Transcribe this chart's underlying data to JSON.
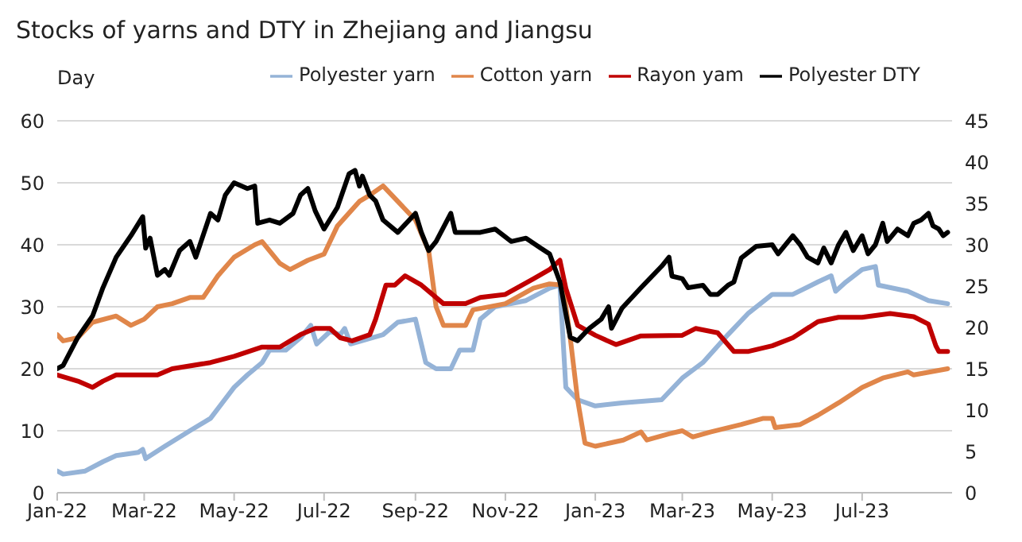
{
  "chart_data": {
    "type": "line",
    "title": "Stocks of yarns and DTY in Zhejiang and Jiangsu",
    "ylabel": "Day",
    "xlim": [
      "2022-01-01",
      "2023-08-31"
    ],
    "xticks": [
      {
        "value": "2022-01-01",
        "label": "Jan-22"
      },
      {
        "value": "2022-03-01",
        "label": "Mar-22"
      },
      {
        "value": "2022-05-01",
        "label": "May-22"
      },
      {
        "value": "2022-07-01",
        "label": "Jul-22"
      },
      {
        "value": "2022-09-01",
        "label": "Sep-22"
      },
      {
        "value": "2022-11-01",
        "label": "Nov-22"
      },
      {
        "value": "2023-01-01",
        "label": "Jan-23"
      },
      {
        "value": "2023-03-01",
        "label": "Mar-23"
      },
      {
        "value": "2023-05-01",
        "label": "May-23"
      },
      {
        "value": "2023-07-01",
        "label": "Jul-23"
      }
    ],
    "ylim": [
      0,
      60
    ],
    "yticks": [
      0,
      10,
      20,
      30,
      40,
      50,
      60
    ],
    "y2lim": [
      0,
      45
    ],
    "y2ticks": [
      0,
      5,
      10,
      15,
      20,
      25,
      30,
      35,
      40,
      45
    ],
    "grid": "y",
    "legend": "top",
    "marker": "none",
    "line_style": "solid",
    "series": [
      {
        "name": "Polyester yarn",
        "color": "#95b3d7",
        "x": [
          "2022-01-01",
          "2022-01-05",
          "2022-01-20",
          "2022-02-01",
          "2022-02-10",
          "2022-02-25",
          "2022-02-28",
          "2022-03-02",
          "2022-03-15",
          "2022-04-01",
          "2022-04-15",
          "2022-05-01",
          "2022-05-10",
          "2022-05-20",
          "2022-05-25",
          "2022-06-05",
          "2022-06-15",
          "2022-06-22",
          "2022-06-26",
          "2022-07-05",
          "2022-07-12",
          "2022-07-15",
          "2022-07-19",
          "2022-08-10",
          "2022-08-20",
          "2022-09-01",
          "2022-09-08",
          "2022-09-15",
          "2022-09-25",
          "2022-10-01",
          "2022-10-10",
          "2022-10-15",
          "2022-10-25",
          "2022-11-15",
          "2022-12-01",
          "2022-12-08",
          "2022-12-12",
          "2022-12-20",
          "2023-01-01",
          "2023-01-19",
          "2023-02-15",
          "2023-03-01",
          "2023-03-15",
          "2023-04-01",
          "2023-04-15",
          "2023-05-01",
          "2023-05-15",
          "2023-06-01",
          "2023-06-10",
          "2023-06-13",
          "2023-06-20",
          "2023-07-01",
          "2023-07-10",
          "2023-07-12",
          "2023-08-01",
          "2023-08-15",
          "2023-08-28"
        ],
        "values": [
          3.5,
          3,
          3.5,
          5,
          6,
          6.5,
          7,
          5.5,
          7.5,
          10,
          12,
          17,
          19,
          21,
          23,
          23,
          25,
          27,
          24,
          26,
          25.5,
          26.5,
          24,
          25.5,
          27.5,
          28,
          21,
          20,
          20,
          23,
          23,
          28,
          30,
          31,
          33,
          33.5,
          17,
          15,
          14,
          14.5,
          15,
          18.5,
          21,
          25.5,
          29,
          32,
          32,
          34,
          35,
          32.5,
          34,
          36,
          36.5,
          33.5,
          32.5,
          31,
          30.5
        ]
      },
      {
        "name": "Cotton yarn",
        "color": "#e0864a",
        "x": [
          "2022-01-01",
          "2022-01-05",
          "2022-01-15",
          "2022-01-25",
          "2022-02-10",
          "2022-02-20",
          "2022-03-01",
          "2022-03-10",
          "2022-03-20",
          "2022-04-01",
          "2022-04-10",
          "2022-04-20",
          "2022-05-01",
          "2022-05-15",
          "2022-05-20",
          "2022-06-01",
          "2022-06-08",
          "2022-06-20",
          "2022-07-01",
          "2022-07-10",
          "2022-07-25",
          "2022-08-01",
          "2022-08-10",
          "2022-08-20",
          "2022-09-01",
          "2022-09-10",
          "2022-09-15",
          "2022-09-20",
          "2022-10-05",
          "2022-10-10",
          "2022-11-01",
          "2022-11-20",
          "2022-12-01",
          "2022-12-10",
          "2022-12-15",
          "2022-12-20",
          "2022-12-25",
          "2023-01-01",
          "2023-01-20",
          "2023-02-01",
          "2023-02-05",
          "2023-02-20",
          "2023-03-01",
          "2023-03-08",
          "2023-03-20",
          "2023-04-10",
          "2023-04-25",
          "2023-05-01",
          "2023-05-03",
          "2023-05-20",
          "2023-06-01",
          "2023-06-15",
          "2023-07-01",
          "2023-07-15",
          "2023-08-01",
          "2023-08-05",
          "2023-08-28"
        ],
        "values": [
          25.5,
          24.5,
          25,
          27.5,
          28.5,
          27,
          28,
          30,
          30.5,
          31.5,
          31.5,
          35,
          38,
          40,
          40.5,
          37,
          36,
          37.5,
          38.5,
          43,
          47,
          48,
          49.5,
          47,
          44,
          39,
          30,
          27,
          27,
          29.5,
          30.5,
          33,
          33.7,
          33.5,
          25,
          15,
          8,
          7.5,
          8.5,
          9.8,
          8.5,
          9.5,
          10,
          9,
          9.8,
          11,
          12,
          12,
          10.5,
          11,
          12.5,
          14.5,
          17,
          18.5,
          19.5,
          19,
          20
        ]
      },
      {
        "name": "Rayon yam",
        "color": "#c00000",
        "x": [
          "2022-01-01",
          "2022-01-15",
          "2022-01-25",
          "2022-02-01",
          "2022-02-10",
          "2022-03-10",
          "2022-03-20",
          "2022-04-15",
          "2022-05-01",
          "2022-05-20",
          "2022-06-01",
          "2022-06-15",
          "2022-06-25",
          "2022-07-05",
          "2022-07-12",
          "2022-07-20",
          "2022-08-01",
          "2022-08-05",
          "2022-08-12",
          "2022-08-18",
          "2022-08-25",
          "2022-09-05",
          "2022-09-20",
          "2022-10-05",
          "2022-10-15",
          "2022-11-01",
          "2022-11-20",
          "2022-12-01",
          "2022-12-08",
          "2022-12-12",
          "2022-12-20",
          "2023-01-01",
          "2023-01-15",
          "2023-02-01",
          "2023-03-01",
          "2023-03-10",
          "2023-03-25",
          "2023-04-05",
          "2023-04-15",
          "2023-05-01",
          "2023-05-15",
          "2023-06-01",
          "2023-06-15",
          "2023-07-01",
          "2023-07-20",
          "2023-08-05",
          "2023-08-15",
          "2023-08-20",
          "2023-08-22",
          "2023-08-28"
        ],
        "values": [
          19,
          18,
          17,
          18,
          19,
          19,
          20,
          21,
          22,
          23.5,
          23.5,
          25.5,
          26.5,
          26.5,
          25,
          24.5,
          25.5,
          28,
          33.5,
          33.5,
          35,
          33.5,
          30.5,
          30.5,
          31.5,
          32,
          34.5,
          36,
          37.5,
          33,
          27,
          25.4,
          23.9,
          25.3,
          25.4,
          26.5,
          25.8,
          22.8,
          22.8,
          23.7,
          25,
          27.6,
          28.3,
          28.3,
          28.9,
          28.4,
          27.2,
          23.7,
          22.8,
          22.8
        ]
      },
      {
        "name": "Polyester DTY",
        "color": "#000000",
        "axis": "y2",
        "x": [
          "2022-01-01",
          "2022-01-05",
          "2022-01-15",
          "2022-01-25",
          "2022-02-01",
          "2022-02-10",
          "2022-02-20",
          "2022-02-28",
          "2022-03-02",
          "2022-03-05",
          "2022-03-10",
          "2022-03-15",
          "2022-03-18",
          "2022-03-25",
          "2022-04-01",
          "2022-04-05",
          "2022-04-15",
          "2022-04-20",
          "2022-04-25",
          "2022-05-01",
          "2022-05-10",
          "2022-05-15",
          "2022-05-17",
          "2022-05-25",
          "2022-06-01",
          "2022-06-10",
          "2022-06-15",
          "2022-06-20",
          "2022-06-25",
          "2022-07-01",
          "2022-07-10",
          "2022-07-18",
          "2022-07-22",
          "2022-07-25",
          "2022-07-27",
          "2022-08-01",
          "2022-08-05",
          "2022-08-10",
          "2022-08-20",
          "2022-09-01",
          "2022-09-05",
          "2022-09-10",
          "2022-09-15",
          "2022-09-25",
          "2022-09-28",
          "2022-10-15",
          "2022-10-25",
          "2022-11-05",
          "2022-11-15",
          "2022-11-25",
          "2022-12-01",
          "2022-12-08",
          "2022-12-15",
          "2022-12-20",
          "2022-12-28",
          "2023-01-05",
          "2023-01-10",
          "2023-01-12",
          "2023-01-19",
          "2023-02-01",
          "2023-02-15",
          "2023-02-20",
          "2023-02-22",
          "2023-03-01",
          "2023-03-05",
          "2023-03-15",
          "2023-03-20",
          "2023-03-25",
          "2023-04-01",
          "2023-04-05",
          "2023-04-10",
          "2023-04-20",
          "2023-05-01",
          "2023-05-05",
          "2023-05-15",
          "2023-05-20",
          "2023-05-25",
          "2023-06-01",
          "2023-06-05",
          "2023-06-10",
          "2023-06-15",
          "2023-06-20",
          "2023-06-25",
          "2023-07-01",
          "2023-07-05",
          "2023-07-10",
          "2023-07-15",
          "2023-07-18",
          "2023-07-25",
          "2023-08-01",
          "2023-08-05",
          "2023-08-10",
          "2023-08-15",
          "2023-08-18",
          "2023-08-22",
          "2023-08-25",
          "2023-08-28"
        ],
        "values": [
          15,
          15.4,
          18.8,
          21.4,
          24.8,
          28.5,
          31.1,
          33.4,
          29.6,
          30.8,
          26.3,
          27,
          26.3,
          29.3,
          30.4,
          28.5,
          33.8,
          33,
          36,
          37.5,
          36.8,
          37.1,
          32.6,
          33,
          32.6,
          33.8,
          36,
          36.8,
          34.1,
          31.9,
          34.5,
          38.6,
          39,
          37.1,
          38.3,
          36,
          35.3,
          33,
          31.5,
          33.8,
          31.5,
          29.3,
          30.4,
          33.8,
          31.5,
          31.5,
          31.9,
          30.4,
          30.8,
          29.6,
          28.9,
          25.5,
          18.8,
          18.4,
          19.9,
          21,
          22.5,
          19.9,
          22.3,
          24.8,
          27.4,
          28.5,
          26.2,
          25.9,
          24.8,
          25.1,
          24,
          24,
          25.1,
          25.5,
          28.4,
          29.8,
          30,
          28.9,
          31.1,
          30,
          28.5,
          27.8,
          29.6,
          27.8,
          30,
          31.5,
          29.3,
          31.1,
          28.9,
          30,
          32.6,
          30.4,
          31.9,
          31.1,
          32.6,
          33,
          33.8,
          32.3,
          31.9,
          31.1,
          31.5
        ]
      }
    ]
  }
}
